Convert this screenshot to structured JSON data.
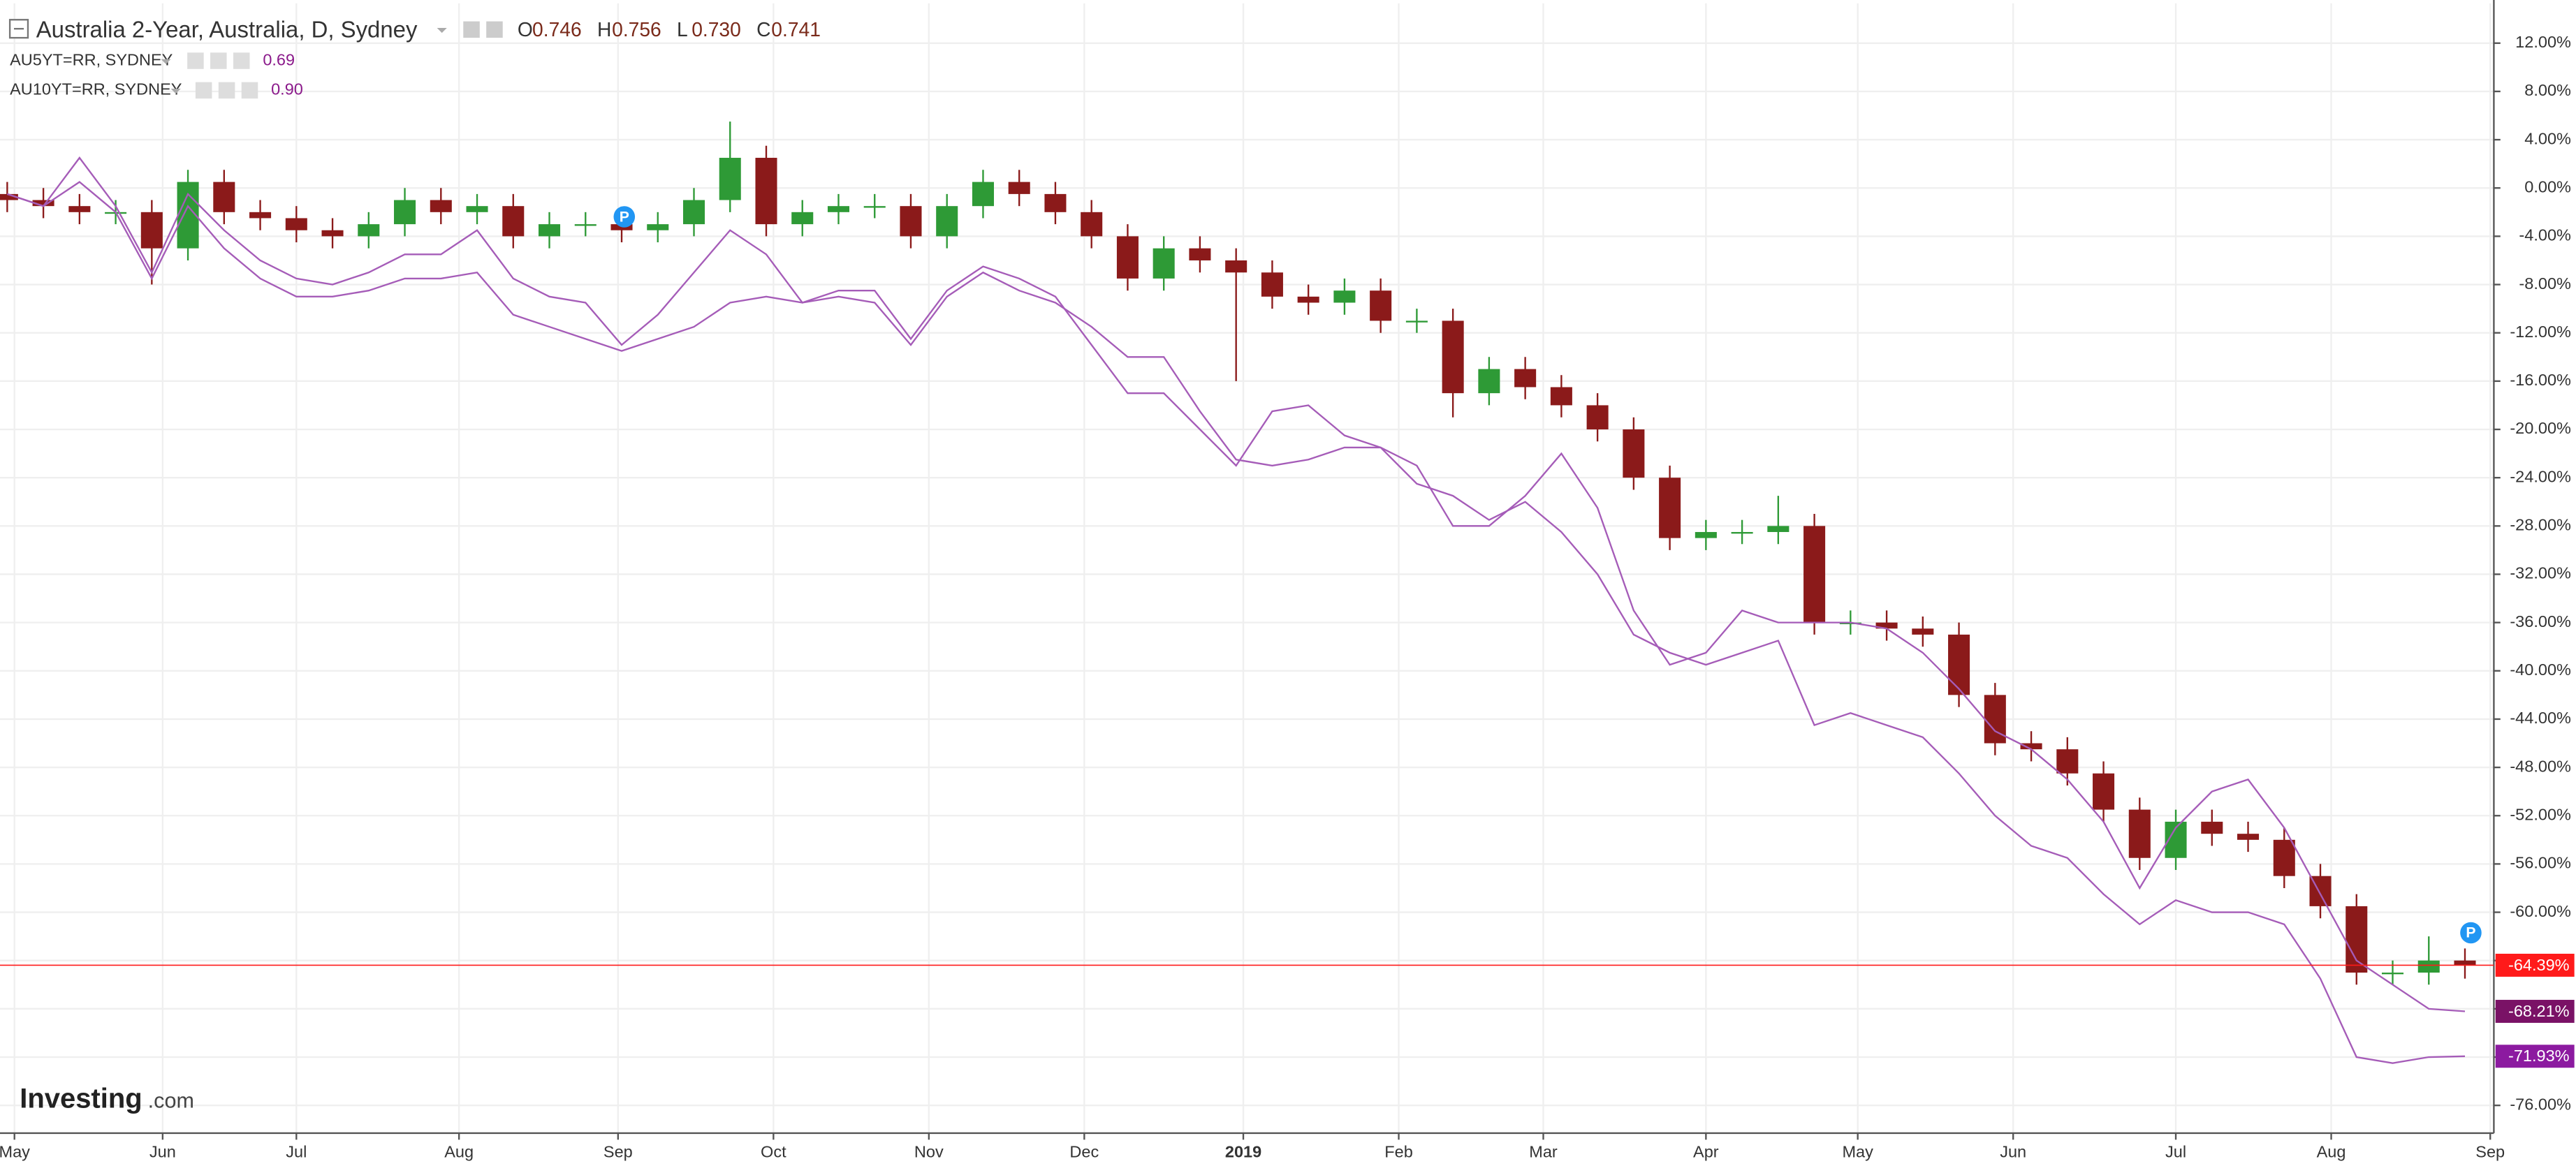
{
  "chart_data": {
    "type": "candlestick",
    "ohlc": [
      {
        "label": "O",
        "value": "0.746"
      },
      {
        "label": "H",
        "value": "0.756"
      },
      {
        "label": "L",
        "value": "0.730"
      },
      {
        "label": "C",
        "value": "0.741"
      }
    ],
    "marker_text": "P",
    "watermark": [
      "Investing",
      ".com"
    ],
    "ylim": [
      -78.3,
      15.3
    ],
    "yticks": [
      {
        "value": 12,
        "label": "12.00%"
      },
      {
        "value": 8,
        "label": "8.00%"
      },
      {
        "value": 4,
        "label": "4.00%"
      },
      {
        "value": 0,
        "label": "0.00%"
      },
      {
        "value": -4,
        "label": "-4.00%"
      },
      {
        "value": -8,
        "label": "-8.00%"
      },
      {
        "value": -12,
        "label": "-12.00%"
      },
      {
        "value": -16,
        "label": "-16.00%"
      },
      {
        "value": -20,
        "label": "-20.00%"
      },
      {
        "value": -24,
        "label": "-24.00%"
      },
      {
        "value": -28,
        "label": "-28.00%"
      },
      {
        "value": -32,
        "label": "-32.00%"
      },
      {
        "value": -36,
        "label": "-36.00%"
      },
      {
        "value": -40,
        "label": "-40.00%"
      },
      {
        "value": -44,
        "label": "-44.00%"
      },
      {
        "value": -48,
        "label": "-48.00%"
      },
      {
        "value": -52,
        "label": "-52.00%"
      },
      {
        "value": -56,
        "label": "-56.00%"
      },
      {
        "value": -60,
        "label": "-60.00%"
      },
      {
        "value": -64,
        "label": "-64.00%"
      },
      {
        "value": -68,
        "label": "-68.00%"
      },
      {
        "value": -72,
        "label": "-72.00%"
      },
      {
        "value": -76,
        "label": "-76.00%"
      }
    ],
    "xlim": [
      -0.2,
      68.8
    ],
    "xticks": [
      {
        "value": 0.2,
        "label": "May"
      },
      {
        "value": 4.3,
        "label": "Jun"
      },
      {
        "value": 8.0,
        "label": "Jul"
      },
      {
        "value": 12.5,
        "label": "Aug"
      },
      {
        "value": 16.9,
        "label": "Sep"
      },
      {
        "value": 21.2,
        "label": "Oct"
      },
      {
        "value": 25.5,
        "label": "Nov"
      },
      {
        "value": 29.8,
        "label": "Dec"
      },
      {
        "value": 34.2,
        "label": "2019"
      },
      {
        "value": 38.5,
        "label": "Feb"
      },
      {
        "value": 42.5,
        "label": "Mar"
      },
      {
        "value": 47.0,
        "label": "Apr"
      },
      {
        "value": 51.2,
        "label": "May"
      },
      {
        "value": 55.5,
        "label": "Jun"
      },
      {
        "value": 60.0,
        "label": "Jul"
      },
      {
        "value": 64.3,
        "label": "Aug"
      },
      {
        "value": 68.7,
        "label": "Sep"
      }
    ],
    "grid": true,
    "series": [
      {
        "name": "Australia 2-Year, Australia, D, Sydney",
        "type": "candlestick",
        "up_color": "#2e9a36",
        "down_color": "#8b1a1a",
        "last_color": "#ff1a1a",
        "last_label": "-64.39%",
        "open": [
          -0.5,
          -1,
          -1.5,
          -2,
          -2,
          -5,
          0.5,
          -2,
          -2.5,
          -3.5,
          -4,
          -3,
          -1,
          -2,
          -1.5,
          -4,
          -3,
          -3,
          -3.5,
          -3,
          -1,
          2.5,
          -3,
          -2,
          -1.5,
          -1.5,
          -4,
          -1.5,
          0.5,
          -0.5,
          -2,
          -4,
          -7.5,
          -5,
          -6,
          -7,
          -9,
          -9.5,
          -8.5,
          -11,
          -11,
          -17,
          -15,
          -16.5,
          -18,
          -20,
          -24,
          -29,
          -28.5,
          -28.5,
          -28,
          -36,
          -36,
          -36.5,
          -37,
          -42,
          -46,
          -46.5,
          -48.5,
          -51.5,
          -55.5,
          -52.5,
          -53.5,
          -54,
          -57,
          -59.5,
          -65,
          -65,
          -64
        ],
        "high": [
          0.5,
          0,
          -0.5,
          -1,
          -1,
          1.5,
          1.5,
          -1,
          -1.5,
          -2.5,
          -2,
          0,
          0,
          -0.5,
          -0.5,
          -2,
          -2,
          -2,
          -2,
          0,
          5.5,
          3.5,
          -1,
          -0.5,
          -0.5,
          -0.5,
          -0.5,
          1.5,
          1.5,
          0.5,
          -1,
          -3,
          -4,
          -4,
          -5,
          -6,
          -8,
          -7.5,
          -7.5,
          -10,
          -10,
          -14,
          -14,
          -15.5,
          -17,
          -19,
          -23,
          -27.5,
          -27.5,
          -25.5,
          -27,
          -35,
          -35,
          -35.5,
          -36,
          -41,
          -45,
          -45.5,
          -47.5,
          -50.5,
          -51.5,
          -51.5,
          -52.5,
          -53,
          -56,
          -58.5,
          -64,
          -62,
          -63
        ],
        "low": [
          -2,
          -2.5,
          -3,
          -3,
          -8,
          -6,
          -3,
          -3.5,
          -4.5,
          -5,
          -5,
          -4,
          -3,
          -3,
          -5,
          -5,
          -4,
          -4.5,
          -4.5,
          -4,
          -2,
          -4,
          -4,
          -3,
          -2.5,
          -5,
          -5,
          -2.5,
          -1.5,
          -3,
          -5,
          -8.5,
          -8.5,
          -7,
          -16,
          -10,
          -10.5,
          -10.5,
          -12,
          -12,
          -19,
          -18,
          -17.5,
          -19,
          -21,
          -25,
          -30,
          -30,
          -29.5,
          -29.5,
          -37,
          -37,
          -37.5,
          -38,
          -43,
          -47,
          -47.5,
          -49.5,
          -52.5,
          -56.5,
          -56.5,
          -54.5,
          -55,
          -58,
          -60.5,
          -66,
          -66,
          -66,
          -65.5
        ],
        "close": [
          -1,
          -1.5,
          -2,
          -2,
          -5,
          0.5,
          -2,
          -2.5,
          -3.5,
          -4,
          -3,
          -1,
          -2,
          -1.5,
          -4,
          -3,
          -3,
          -3.5,
          -3,
          -1,
          2.5,
          -3,
          -2,
          -1.5,
          -1.5,
          -4,
          -1.5,
          0.5,
          -0.5,
          -2,
          -4,
          -7.5,
          -5,
          -6,
          -7,
          -9,
          -9.5,
          -8.5,
          -11,
          -11,
          -17,
          -15,
          -16.5,
          -18,
          -20,
          -24,
          -29,
          -28.5,
          -28.5,
          -28,
          -36,
          -36,
          -36.5,
          -37,
          -42,
          -46,
          -46.5,
          -48.5,
          -51.5,
          -55.5,
          -52.5,
          -53.5,
          -54,
          -57,
          -59.5,
          -65,
          -65,
          -64,
          -64.39
        ]
      },
      {
        "name": "AU5YT=RR, SYDNEY",
        "type": "line",
        "color": "#a55cb8",
        "legend_value": "0.69",
        "last_color": "#7a1266",
        "last_label": "-68.21%",
        "values": [
          -0.5,
          -1.5,
          2.5,
          -1.5,
          -7,
          -0.5,
          -3.5,
          -6,
          -7.5,
          -8,
          -7,
          -5.5,
          -5.5,
          -3.5,
          -7.5,
          -9,
          -9.5,
          -13,
          -10.5,
          -7,
          -3.5,
          -5.5,
          -9.5,
          -8.5,
          -8.5,
          -12.5,
          -8.5,
          -6.5,
          -7.5,
          -9,
          -13,
          -17,
          -17,
          -20,
          -23,
          -18.5,
          -18,
          -20.5,
          -21.5,
          -23,
          -28,
          -28,
          -25.5,
          -22,
          -26.5,
          -35,
          -39.5,
          -38.5,
          -35,
          -36,
          -36,
          -36,
          -36.5,
          -38.5,
          -41.5,
          -45,
          -46.5,
          -49,
          -52.5,
          -58,
          -53,
          -50,
          -49,
          -53,
          -58.5,
          -64,
          -66,
          -68,
          -68.21
        ]
      },
      {
        "name": "AU10YT=RR, SYDNEY",
        "type": "line",
        "color": "#a55cb8",
        "legend_value": "0.90",
        "last_color": "#8c1aa0",
        "last_label": "-71.93%",
        "values": [
          -0.5,
          -1.5,
          0.5,
          -2,
          -7.5,
          -1.5,
          -5,
          -7.5,
          -9,
          -9,
          -8.5,
          -7.5,
          -7.5,
          -7,
          -10.5,
          -11.5,
          -12.5,
          -13.5,
          -12.5,
          -11.5,
          -9.5,
          -9,
          -9.5,
          -9,
          -9.5,
          -13,
          -9,
          -7,
          -8.5,
          -9.5,
          -11.5,
          -14,
          -14,
          -18.5,
          -22.5,
          -23,
          -22.5,
          -21.5,
          -21.5,
          -24.5,
          -25.5,
          -27.5,
          -26,
          -28.5,
          -32,
          -37,
          -38.5,
          -39.5,
          -38.5,
          -37.5,
          -44.5,
          -43.5,
          -44.5,
          -45.5,
          -48.5,
          -52,
          -54.5,
          -55.5,
          -58.5,
          -61,
          -59,
          -60,
          -60,
          -61,
          -65.5,
          -72,
          -72.5,
          -72,
          -71.93
        ]
      }
    ]
  }
}
